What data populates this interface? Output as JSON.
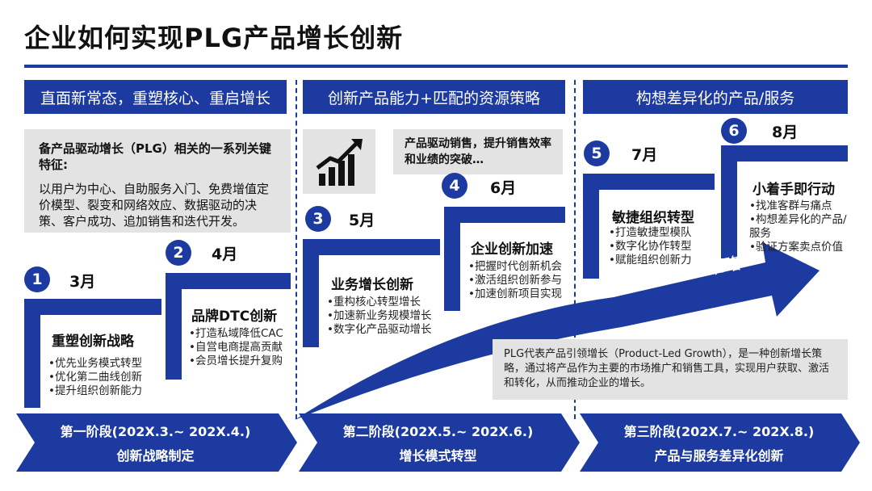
{
  "title": "企业如何实现PLG产品增长创新",
  "colors": {
    "primary": "#1c3aa0",
    "panel": "#e3e3e3",
    "text": "#111111"
  },
  "phase_headers": [
    "直面新常态，重塑核心、重启增长",
    "创新产品能力+匹配的资源策略",
    "构想差异化的产品/服务"
  ],
  "intro": {
    "title": "备产品驱动增长（PLG）相关的一系列关键特征:",
    "body": "以用户为中心、自助服务入门、免费增值定价模型、裂变和网络效应、数据驱动的决策、客户成功、追加销售和迭代开发。"
  },
  "growth_icon": "bar-chart-trend-icon",
  "callout_sales": "产品驱动销售，提升销售效率和业绩的突破…",
  "steps": [
    {
      "num": "1",
      "month": "3月",
      "title": "重塑创新战略",
      "bullets": [
        "•优先业务模式转型",
        "•优化第二曲线创新",
        "•提升组织创新能力"
      ]
    },
    {
      "num": "2",
      "month": "4月",
      "title": "品牌DTC创新",
      "bullets": [
        "•打造私域降低CAC",
        "•自営电商提高贡献",
        "•会员增长提升复购"
      ]
    },
    {
      "num": "3",
      "month": "5月",
      "title": "业务增长创新",
      "bullets": [
        "•重构核心转型增长",
        "•加速新业务规模增长",
        "•数字化产品驱动增长"
      ]
    },
    {
      "num": "4",
      "month": "6月",
      "title": "企业创新加速",
      "bullets": [
        "•把握时代创新机会",
        "•激活组织创新参与",
        "•加速创新项目实现"
      ]
    },
    {
      "num": "5",
      "month": "7月",
      "title": "敏捷组织转型",
      "bullets": [
        "•打造敏捷型模队",
        "•数字化协作转型",
        "•赋能组织创新力"
      ]
    },
    {
      "num": "6",
      "month": "8月",
      "title": "小着手即行动",
      "bullets": [
        "•找准客群与痛点",
        "•构想差异化的产品/服务",
        "•验证方案卖点价值"
      ]
    }
  ],
  "path_label": "实现路径+策略",
  "plg_note": "PLG代表产品引领增长（Product-Led Growth），是一种创新增长策略，通过将产品作为主要的市场推广和销售工具，实现用户获取、激活和转化，从而推动企业的增长。",
  "footer": [
    {
      "line1": "第一阶段(202X.3.~ 202X.4.)",
      "line2": "创新战略制定"
    },
    {
      "line1": "第二阶段(202X.5.~ 202X.6.)",
      "line2": "增长模式转型"
    },
    {
      "line1": "第三阶段(202X.7.~ 202X.8.)",
      "line2": "产品与服务差异化创新"
    }
  ]
}
